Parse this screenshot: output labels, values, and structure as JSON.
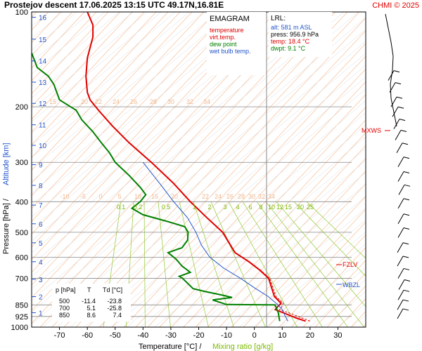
{
  "header": {
    "title": "Prostejov   descent   17.06.2025 13:15 UTC  49.17N,16.81E",
    "copyright": "CHMI © 2025"
  },
  "legend": {
    "title": "EMAGRAM",
    "items": [
      {
        "label": "temperature",
        "color": "#e00000"
      },
      {
        "label": "virt.temp.",
        "color": "#e00000"
      },
      {
        "label": "dew point",
        "color": "#008000"
      },
      {
        "label": "wet bulb temp.",
        "color": "#2255cc"
      }
    ]
  },
  "lrl": {
    "title": "LRL:",
    "alt": "alt: 581 m ASL",
    "press": "press: 956.9 hPa",
    "temp": "temp: 18.4 °C",
    "dwpt": "dwpt: 9.1 °C"
  },
  "levels_table": {
    "headers": [
      "p [hPa]",
      "T",
      "Td [°C]"
    ],
    "rows": [
      [
        "500",
        "-11.4",
        "-23.8"
      ],
      [
        "700",
        "5.1",
        "-25.8"
      ],
      [
        "850",
        "8.6",
        "7.4"
      ]
    ]
  },
  "markers": {
    "mxws": "MXWS",
    "fzlv": "FZLV",
    "wbzl": "WBZL"
  },
  "axes": {
    "xlabel_temp": "Temperature [°C]  /",
    "xlabel_mix": "Mixing ratio [g/kg]",
    "ylabel_pressure": "Pressure [hPa]  /",
    "ylabel_alt": "Altitude [km]"
  },
  "chart_data": {
    "type": "line",
    "x_axis": {
      "label": "Temperature [°C]",
      "range": [
        -80,
        40
      ],
      "ticks": [
        -70,
        -60,
        -50,
        -40,
        -30,
        -20,
        -10,
        0,
        10,
        20,
        30
      ]
    },
    "y_axis": {
      "label": "Pressure [hPa]",
      "scale": "log",
      "range": [
        1000,
        100
      ],
      "ticks": [
        100,
        200,
        300,
        400,
        500,
        600,
        700,
        850,
        925,
        1000
      ]
    },
    "altitude_ticks": [
      1,
      2,
      3,
      4,
      5,
      6,
      7,
      8,
      9,
      10,
      11,
      12,
      13,
      14,
      15,
      16
    ],
    "mixing_ratio_labels": [
      "0.1",
      "0.2",
      "0.5",
      "1",
      "2",
      "3",
      "4",
      "6",
      "8",
      "10",
      "12",
      "15",
      "20",
      "25"
    ],
    "isotherm_labels": [
      "15",
      "20",
      "22",
      "24",
      "26",
      "28",
      "30",
      "32",
      "34",
      "-10",
      "-5",
      "0",
      "5",
      "10",
      "15",
      "20",
      "22",
      "24",
      "26",
      "28",
      "30",
      "32",
      "34"
    ],
    "series": [
      {
        "name": "temperature",
        "color": "#e00000",
        "points": [
          [
            18.4,
            957
          ],
          [
            15,
            935
          ],
          [
            11,
            905
          ],
          [
            7.5,
            880
          ],
          [
            8.2,
            865
          ],
          [
            9.6,
            840
          ],
          [
            7.2,
            800
          ],
          [
            5.1,
            700
          ],
          [
            2,
            660
          ],
          [
            -2,
            620
          ],
          [
            -7,
            580
          ],
          [
            -11.4,
            500
          ],
          [
            -17,
            450
          ],
          [
            -23,
            400
          ],
          [
            -29,
            350
          ],
          [
            -37,
            300
          ],
          [
            -45,
            260
          ],
          [
            -51,
            230
          ],
          [
            -56,
            205
          ],
          [
            -59,
            190
          ],
          [
            -60,
            180
          ],
          [
            -60.5,
            160
          ],
          [
            -60,
            140
          ],
          [
            -58,
            120
          ],
          [
            -58,
            110
          ],
          [
            -60,
            100
          ]
        ]
      },
      {
        "name": "virt.temp.",
        "color": "#e00000",
        "points": [
          [
            20,
            957
          ],
          [
            17,
            935
          ],
          [
            13,
            905
          ],
          [
            9,
            880
          ],
          [
            9.8,
            865
          ],
          [
            10.4,
            840
          ],
          [
            7.8,
            800
          ],
          [
            5.5,
            700
          ],
          [
            2.3,
            660
          ],
          [
            -1.7,
            620
          ],
          [
            -6.8,
            580
          ],
          [
            -11.2,
            500
          ],
          [
            -16.9,
            450
          ],
          [
            -22.9,
            400
          ],
          [
            -28.9,
            350
          ],
          [
            -36.9,
            300
          ],
          [
            -44.9,
            260
          ],
          [
            -51,
            230
          ],
          [
            -56,
            205
          ],
          [
            -59,
            190
          ],
          [
            -60,
            180
          ],
          [
            -60.5,
            160
          ],
          [
            -60,
            140
          ],
          [
            -58,
            120
          ],
          [
            -58,
            110
          ],
          [
            -60,
            100
          ]
        ]
      },
      {
        "name": "dew point",
        "color": "#008000",
        "points": [
          [
            9.1,
            957
          ],
          [
            8.6,
            900
          ],
          [
            7.4,
            850
          ],
          [
            -10,
            848
          ],
          [
            -15,
            820
          ],
          [
            -8,
            805
          ],
          [
            -12,
            790
          ],
          [
            -18,
            770
          ],
          [
            -22,
            755
          ],
          [
            -25.8,
            700
          ],
          [
            -27,
            690
          ],
          [
            -23,
            670
          ],
          [
            -26,
            640
          ],
          [
            -28,
            610
          ],
          [
            -31,
            580
          ],
          [
            -26,
            560
          ],
          [
            -24,
            530
          ],
          [
            -23.8,
            500
          ],
          [
            -25,
            480
          ],
          [
            -32,
            460
          ],
          [
            -40,
            440
          ],
          [
            -44,
            420
          ],
          [
            -41,
            400
          ],
          [
            -39,
            380
          ],
          [
            -41,
            360
          ],
          [
            -45,
            330
          ],
          [
            -50,
            300
          ],
          [
            -52,
            280
          ],
          [
            -55,
            260
          ],
          [
            -58,
            240
          ],
          [
            -62,
            220
          ],
          [
            -64,
            205
          ],
          [
            -66,
            200
          ],
          [
            -70,
            190
          ],
          [
            -72,
            170
          ],
          [
            -74,
            160
          ],
          [
            -78,
            150
          ],
          [
            -80,
            135
          ]
        ]
      },
      {
        "name": "wet bulb temp.",
        "color": "#2255cc",
        "points": [
          [
            12,
            957
          ],
          [
            11,
            920
          ],
          [
            10,
            880
          ],
          [
            8.5,
            850
          ],
          [
            5,
            800
          ],
          [
            0,
            750
          ],
          [
            -5,
            700
          ],
          [
            -11,
            650
          ],
          [
            -16,
            600
          ],
          [
            -19,
            550
          ],
          [
            -21,
            500
          ],
          [
            -24,
            450
          ],
          [
            -29,
            400
          ],
          [
            -34,
            350
          ],
          [
            -40,
            300
          ]
        ]
      }
    ],
    "wind_barbs_pressures": [
      165,
      180,
      200,
      215,
      235,
      255,
      280,
      310,
      345,
      380,
      420,
      470,
      520,
      580,
      640,
      700,
      760,
      820,
      880,
      940
    ]
  }
}
